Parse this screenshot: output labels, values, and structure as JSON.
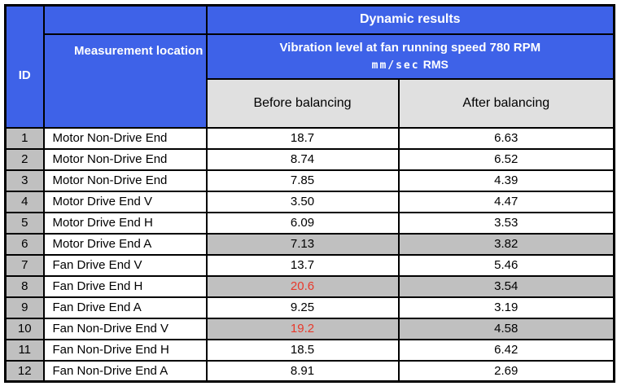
{
  "colors": {
    "header_blue": "#3e62e8",
    "header_text_white": "#ffffff",
    "subheader_gray": "#e0e0e0",
    "shaded_row_gray": "#c0c0c0",
    "id_cell_gray": "#c0c0c0",
    "alert_red": "#e8392b",
    "border_black": "#000000"
  },
  "chart_data": {
    "type": "table",
    "title": "Dynamic results",
    "group_header": "Vibration level at fan running speed 780 RPM",
    "unit": "mm/sec",
    "unit_suffix": "RMS",
    "columns": [
      "ID",
      "Measurement location",
      "Before balancing",
      "After balancing"
    ],
    "rows": [
      {
        "id": "1",
        "location": "Motor Non-Drive End",
        "before": "18.7",
        "after": "6.63",
        "shaded": false,
        "before_red": false
      },
      {
        "id": "2",
        "location": "Motor Non-Drive End",
        "before": "8.74",
        "after": "6.52",
        "shaded": false,
        "before_red": false
      },
      {
        "id": "3",
        "location": "Motor Non-Drive End",
        "before": "7.85",
        "after": "4.39",
        "shaded": false,
        "before_red": false
      },
      {
        "id": "4",
        "location": "Motor Drive End V",
        "before": "3.50",
        "after": "4.47",
        "shaded": false,
        "before_red": false
      },
      {
        "id": "5",
        "location": "Motor Drive End H",
        "before": "6.09",
        "after": "3.53",
        "shaded": false,
        "before_red": false
      },
      {
        "id": "6",
        "location": "Motor Drive End A",
        "before": "7.13",
        "after": "3.82",
        "shaded": true,
        "before_red": false
      },
      {
        "id": "7",
        "location": "Fan Drive End V",
        "before": "13.7",
        "after": "5.46",
        "shaded": false,
        "before_red": false
      },
      {
        "id": "8",
        "location": "Fan Drive End H",
        "before": "20.6",
        "after": "3.54",
        "shaded": true,
        "before_red": true
      },
      {
        "id": "9",
        "location": "Fan Drive End A",
        "before": "9.25",
        "after": "3.19",
        "shaded": false,
        "before_red": false
      },
      {
        "id": "10",
        "location": "Fan Non-Drive End V",
        "before": "19.2",
        "after": "4.58",
        "shaded": true,
        "before_red": true
      },
      {
        "id": "11",
        "location": "Fan Non-Drive End H",
        "before": "18.5",
        "after": "6.42",
        "shaded": false,
        "before_red": false
      },
      {
        "id": "12",
        "location": "Fan Non-Drive End A",
        "before": "8.91",
        "after": "2.69",
        "shaded": false,
        "before_red": false
      }
    ]
  }
}
